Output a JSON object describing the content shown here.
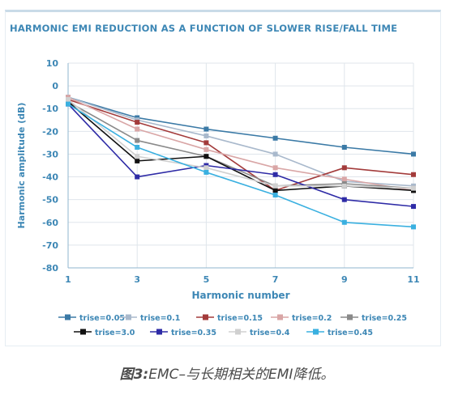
{
  "chart_data": {
    "type": "line",
    "title": "HARMONIC EMI REDUCTION AS A FUNCTION OF SLOWER RISE/FALL TIME",
    "xlabel": "Harmonic number",
    "ylabel": "Harmonic amplitude (dB)",
    "x": [
      1,
      3,
      5,
      7,
      9,
      11
    ],
    "x_tick_labels": [
      "1",
      "3",
      "5",
      "7",
      "9",
      "11"
    ],
    "ylim": [
      -80,
      10
    ],
    "y_ticks": [
      10,
      0,
      -10,
      -20,
      -30,
      -40,
      -50,
      -60,
      -70,
      -80
    ],
    "y_tick_labels": [
      "10",
      "0",
      "-10",
      "-20",
      "-30",
      "-40",
      "-50",
      "-60",
      "-70",
      "-80"
    ],
    "grid": true,
    "legend_position": "bottom",
    "series": [
      {
        "name": "trise=0.05",
        "color": "#3b7aa6",
        "values": [
          -5,
          -14,
          -19,
          -23,
          -27,
          -30
        ]
      },
      {
        "name": "trise=0.1",
        "color": "#a9b9cc",
        "values": [
          -5,
          -15,
          -22,
          -30,
          -42,
          -44
        ]
      },
      {
        "name": "trise=0.15",
        "color": "#a33b3b",
        "values": [
          -6,
          -16,
          -25,
          -46,
          -36,
          -39
        ]
      },
      {
        "name": "trise=0.2",
        "color": "#d9a6a6",
        "values": [
          -5,
          -19,
          -28,
          -36,
          -41,
          -46
        ]
      },
      {
        "name": "trise=0.25",
        "color": "#8a8a8a",
        "values": [
          -7,
          -24,
          -31,
          -44,
          -43,
          -45
        ]
      },
      {
        "name": "trise=3.0",
        "color": "#111111",
        "values": [
          -7,
          -33,
          -31,
          -46,
          -44,
          -46
        ]
      },
      {
        "name": "trise=0.35",
        "color": "#2e2ba6",
        "values": [
          -8,
          -40,
          -35,
          -39,
          -50,
          -53
        ]
      },
      {
        "name": "trise=0.4",
        "color": "#d0d0d0",
        "values": [
          -6,
          -31,
          -36,
          -44,
          -44,
          -45
        ]
      },
      {
        "name": "trise=0.45",
        "color": "#3ab0e0",
        "values": [
          -8,
          -27,
          -38,
          -48,
          -60,
          -62
        ]
      }
    ]
  },
  "caption": {
    "prefix": "图3:",
    "text": "EMC–与长期相关的EMI降低。"
  }
}
